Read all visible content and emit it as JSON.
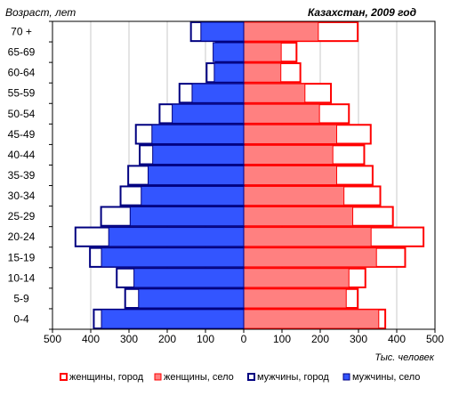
{
  "chart_data": {
    "type": "bar",
    "orientation": "horizontal",
    "layout": "population-pyramid",
    "title": "Казахстан, 2009 год",
    "ylabel": "Возраст, лет",
    "xlabel": "Тыс. человек",
    "xlim": [
      -500,
      500
    ],
    "xticks": [
      -500,
      -400,
      -300,
      -200,
      -100,
      0,
      100,
      200,
      300,
      400,
      500
    ],
    "xtick_labels": [
      "500",
      "400",
      "300",
      "200",
      "100",
      "0",
      "100",
      "200",
      "300",
      "400",
      "500"
    ],
    "grid": true,
    "legend_position": "bottom",
    "categories": [
      "70 +",
      "65-69",
      "60-64",
      "55-59",
      "50-54",
      "45-49",
      "40-44",
      "35-39",
      "30-34",
      "25-29",
      "20-24",
      "15-19",
      "10-14",
      "5-9",
      "0-4"
    ],
    "series": [
      {
        "name": "женщины, город",
        "side": "right",
        "style": "outline",
        "color": "#ff0000",
        "values": [
          298,
          138,
          148,
          228,
          275,
          332,
          315,
          337,
          357,
          390,
          470,
          422,
          318,
          298,
          370
        ]
      },
      {
        "name": "женщины, село",
        "side": "right",
        "style": "fill",
        "color": "#ff8080",
        "stroke": "#ff0000",
        "values": [
          195,
          98,
          97,
          160,
          198,
          243,
          233,
          243,
          262,
          285,
          333,
          347,
          275,
          268,
          353
        ]
      },
      {
        "name": "мужчины, город",
        "side": "left",
        "style": "outline",
        "color": "#000080",
        "values": [
          138,
          73,
          97,
          168,
          220,
          282,
          272,
          302,
          322,
          373,
          440,
          402,
          332,
          310,
          392
        ]
      },
      {
        "name": "мужчины, село",
        "side": "left",
        "style": "fill",
        "color": "#3355ff",
        "stroke": "#000080",
        "values": [
          112,
          80,
          77,
          135,
          187,
          240,
          238,
          250,
          268,
          297,
          353,
          372,
          287,
          275,
          372
        ]
      }
    ]
  }
}
